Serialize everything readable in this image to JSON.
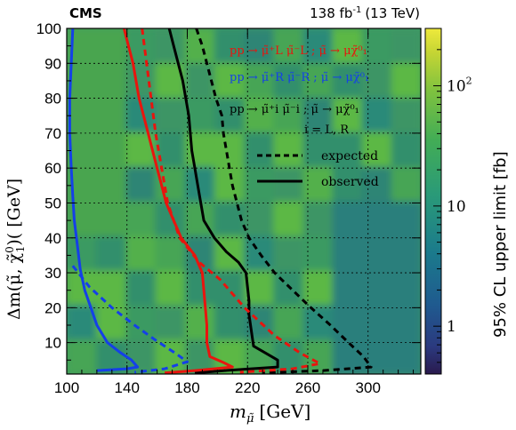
{
  "chart_data": {
    "type": "heatmap",
    "experiment_label": "CMS",
    "lumi_label": "138 fb",
    "lumi_superscript": "-1",
    "lumi_energy": "(13 TeV)",
    "xlabel": "m",
    "xlabel_sub": "μ̃",
    "xlabel_unit": "[GeV]",
    "ylabel": "Δm(μ̃, χ̃",
    "ylabel_tail": ")( [GeV]",
    "ylabel_sup": "0",
    "ylabel_sub": "1",
    "zlabel": "95% CL upper limit [fb]",
    "xlim": [
      100,
      335
    ],
    "ylim": [
      1,
      100
    ],
    "zlim": [
      0.4,
      300
    ],
    "z_scale": "log",
    "grid": true,
    "x_ticks": [
      100,
      140,
      180,
      220,
      260,
      300
    ],
    "y_ticks": [
      10,
      20,
      30,
      40,
      50,
      60,
      70,
      80,
      90,
      100
    ],
    "z_ticks": [
      {
        "value": 1,
        "label": "1"
      },
      {
        "value": 10,
        "label": "10"
      },
      {
        "value": 100,
        "label": "10",
        "sup": "2"
      }
    ],
    "legend_placement": "top-right",
    "legend": {
      "processes": [
        {
          "text": "pp → μ̃⁺L μ̃⁻L ; μ̃ → μχ̃⁰₁",
          "color": "#e8150e"
        },
        {
          "text": "pp → μ̃⁺R μ̃⁻R ; μ̃ → μχ̃⁰₁",
          "color": "#1440e8"
        },
        {
          "text": "pp → μ̃⁺i μ̃⁻i ; μ̃ → μχ̃⁰₁",
          "color": "#000000"
        }
      ],
      "index_note": "i = L, R",
      "styles": [
        {
          "label": "expected",
          "dash": true
        },
        {
          "label": "observed",
          "dash": false
        }
      ]
    },
    "series": [
      {
        "color": "#000000",
        "style": "observed",
        "points": [
          {
            "x": 168,
            "y": 100
          },
          {
            "x": 171,
            "y": 95
          },
          {
            "x": 174,
            "y": 90
          },
          {
            "x": 177,
            "y": 85
          },
          {
            "x": 179,
            "y": 80
          },
          {
            "x": 181,
            "y": 75
          },
          {
            "x": 182,
            "y": 70
          },
          {
            "x": 183,
            "y": 65
          },
          {
            "x": 185,
            "y": 60
          },
          {
            "x": 187,
            "y": 55
          },
          {
            "x": 189,
            "y": 50
          },
          {
            "x": 191,
            "y": 45
          },
          {
            "x": 198,
            "y": 40
          },
          {
            "x": 206,
            "y": 36
          },
          {
            "x": 214,
            "y": 33
          },
          {
            "x": 219,
            "y": 30
          },
          {
            "x": 220,
            "y": 26
          },
          {
            "x": 221,
            "y": 22
          },
          {
            "x": 221,
            "y": 18
          },
          {
            "x": 222,
            "y": 15
          },
          {
            "x": 223,
            "y": 12
          },
          {
            "x": 224,
            "y": 9
          },
          {
            "x": 232,
            "y": 7
          },
          {
            "x": 240,
            "y": 5
          },
          {
            "x": 240,
            "y": 3
          },
          {
            "x": 205,
            "y": 2
          },
          {
            "x": 185,
            "y": 1.3
          }
        ]
      },
      {
        "color": "#000000",
        "style": "expected",
        "points": [
          {
            "x": 186,
            "y": 100
          },
          {
            "x": 190,
            "y": 95
          },
          {
            "x": 193,
            "y": 90
          },
          {
            "x": 196,
            "y": 85
          },
          {
            "x": 199,
            "y": 80
          },
          {
            "x": 203,
            "y": 75
          },
          {
            "x": 204,
            "y": 70
          },
          {
            "x": 206,
            "y": 65
          },
          {
            "x": 208,
            "y": 60
          },
          {
            "x": 210,
            "y": 55
          },
          {
            "x": 213,
            "y": 50
          },
          {
            "x": 216,
            "y": 45
          },
          {
            "x": 221,
            "y": 40
          },
          {
            "x": 229,
            "y": 35
          },
          {
            "x": 238,
            "y": 30
          },
          {
            "x": 250,
            "y": 25
          },
          {
            "x": 262,
            "y": 20
          },
          {
            "x": 275,
            "y": 15
          },
          {
            "x": 287,
            "y": 10
          },
          {
            "x": 297,
            "y": 6
          },
          {
            "x": 302,
            "y": 3
          },
          {
            "x": 270,
            "y": 2
          },
          {
            "x": 230,
            "y": 1.3
          }
        ]
      },
      {
        "color": "#e8150e",
        "style": "observed",
        "points": [
          {
            "x": 138,
            "y": 100
          },
          {
            "x": 141,
            "y": 95
          },
          {
            "x": 144,
            "y": 90
          },
          {
            "x": 146,
            "y": 85
          },
          {
            "x": 148,
            "y": 80
          },
          {
            "x": 151,
            "y": 75
          },
          {
            "x": 154,
            "y": 70
          },
          {
            "x": 157,
            "y": 65
          },
          {
            "x": 160,
            "y": 60
          },
          {
            "x": 163,
            "y": 55
          },
          {
            "x": 166,
            "y": 50
          },
          {
            "x": 171,
            "y": 45
          },
          {
            "x": 176,
            "y": 40
          },
          {
            "x": 185,
            "y": 35
          },
          {
            "x": 190,
            "y": 30
          },
          {
            "x": 191,
            "y": 25
          },
          {
            "x": 192,
            "y": 20
          },
          {
            "x": 193,
            "y": 15
          },
          {
            "x": 193,
            "y": 10
          },
          {
            "x": 195,
            "y": 6
          },
          {
            "x": 203,
            "y": 4.5
          },
          {
            "x": 210,
            "y": 3
          },
          {
            "x": 185,
            "y": 2
          },
          {
            "x": 165,
            "y": 1.3
          }
        ]
      },
      {
        "color": "#e8150e",
        "style": "expected",
        "points": [
          {
            "x": 150,
            "y": 100
          },
          {
            "x": 153,
            "y": 90
          },
          {
            "x": 156,
            "y": 80
          },
          {
            "x": 159,
            "y": 70
          },
          {
            "x": 163,
            "y": 60
          },
          {
            "x": 167,
            "y": 50
          },
          {
            "x": 175,
            "y": 40
          },
          {
            "x": 188,
            "y": 33
          },
          {
            "x": 202,
            "y": 28
          },
          {
            "x": 218,
            "y": 20
          },
          {
            "x": 238,
            "y": 12
          },
          {
            "x": 255,
            "y": 7
          },
          {
            "x": 268,
            "y": 4
          },
          {
            "x": 250,
            "y": 2.5
          },
          {
            "x": 215,
            "y": 1.5
          }
        ]
      },
      {
        "color": "#1440e8",
        "style": "observed",
        "points": [
          {
            "x": 104,
            "y": 100
          },
          {
            "x": 103,
            "y": 90
          },
          {
            "x": 102,
            "y": 80
          },
          {
            "x": 102,
            "y": 70
          },
          {
            "x": 103,
            "y": 60
          },
          {
            "x": 104,
            "y": 52
          },
          {
            "x": 105,
            "y": 45
          },
          {
            "x": 107,
            "y": 38
          },
          {
            "x": 109,
            "y": 31
          },
          {
            "x": 112,
            "y": 25
          },
          {
            "x": 116,
            "y": 20
          },
          {
            "x": 120,
            "y": 15
          },
          {
            "x": 127,
            "y": 10
          },
          {
            "x": 136,
            "y": 7
          },
          {
            "x": 143,
            "y": 5
          },
          {
            "x": 147,
            "y": 3
          },
          {
            "x": 140,
            "y": 2.5
          },
          {
            "x": 120,
            "y": 2
          }
        ]
      },
      {
        "color": "#1440e8",
        "style": "expected",
        "points": [
          {
            "x": 104,
            "y": 32
          },
          {
            "x": 115,
            "y": 26
          },
          {
            "x": 130,
            "y": 20
          },
          {
            "x": 145,
            "y": 15
          },
          {
            "x": 158,
            "y": 11
          },
          {
            "x": 172,
            "y": 7
          },
          {
            "x": 180,
            "y": 4.5
          },
          {
            "x": 165,
            "y": 2.5
          },
          {
            "x": 145,
            "y": 1.5
          }
        ]
      }
    ]
  }
}
